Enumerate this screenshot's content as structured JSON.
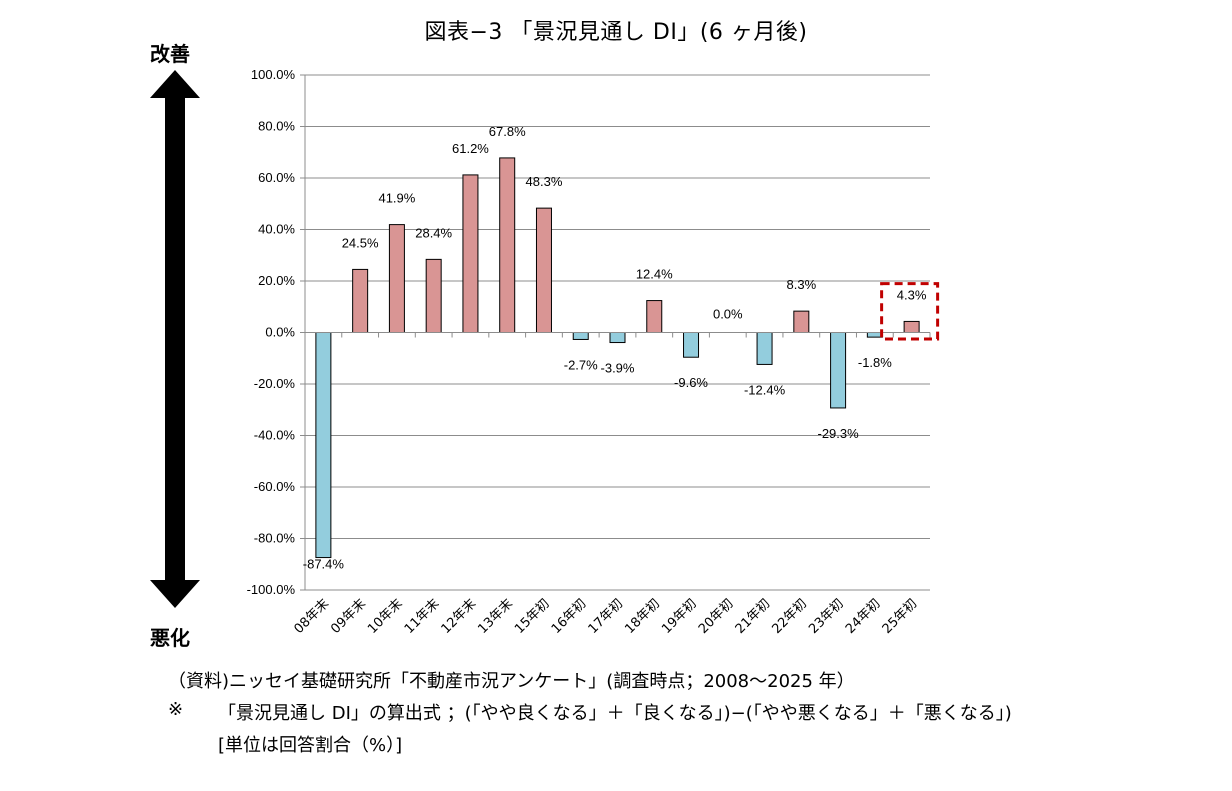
{
  "title": "図表−3 「景況見通し DI」(6 ヶ月後)",
  "axis_direction": {
    "top": "改善",
    "bottom": "悪化"
  },
  "notes": {
    "source": "（資料)ニッセイ基礎研究所「不動産市況アンケート」(調査時点；2008～2025 年）",
    "mark": "※",
    "formula": "「景況見通し DI」の算出式 ；(「やや良くなる」＋「良くなる」)−(「やや悪くなる」＋「悪くなる」)",
    "unit": "[単位は回答割合（%）]"
  },
  "colors": {
    "positive": "#D99594",
    "negative": "#93CDDD",
    "highlight_box": "#C00000"
  },
  "chart_data": {
    "type": "bar",
    "categories": [
      "08年末",
      "09年末",
      "10年末",
      "11年末",
      "12年末",
      "13年末",
      "15年初",
      "16年初",
      "17年初",
      "18年初",
      "19年初",
      "20年初",
      "21年初",
      "22年初",
      "23年初",
      "24年初",
      "25年初"
    ],
    "values": [
      -87.4,
      24.5,
      41.9,
      28.4,
      61.2,
      67.8,
      48.3,
      -2.7,
      -3.9,
      12.4,
      -9.6,
      0.0,
      -12.4,
      8.3,
      -29.3,
      -1.8,
      4.3
    ],
    "data_labels": [
      "-87.4%",
      "24.5%",
      "41.9%",
      "28.4%",
      "61.2%",
      "67.8%",
      "48.3%",
      "-2.7%",
      "-3.9%",
      "12.4%",
      "-9.6%",
      "0.0%",
      "-12.4%",
      "8.3%",
      "-29.3%",
      "-1.8%",
      "4.3%"
    ],
    "yticks": [
      "100.0%",
      "80.0%",
      "60.0%",
      "40.0%",
      "20.0%",
      "0.0%",
      "-20.0%",
      "-40.0%",
      "-60.0%",
      "-80.0%",
      "-100.0%"
    ],
    "ylim": [
      -100,
      100
    ],
    "grid": true,
    "highlighted_category": "25年初"
  }
}
